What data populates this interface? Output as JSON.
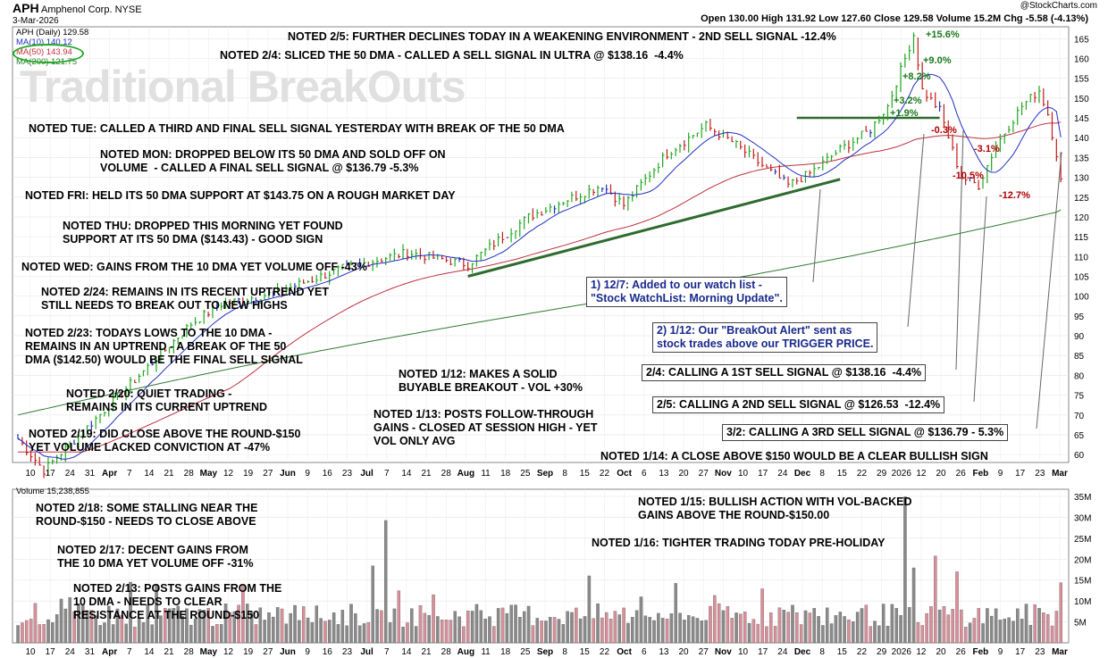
{
  "header": {
    "ticker": "APH",
    "company": "Amphenol Corp.",
    "exchange": "NYSE",
    "date": "3-Mar-2026",
    "source": "@StockCharts.com",
    "ohlc": "Open 130.00  High 131.92  Low 127.60  Close 129.58  Volume 15.2M  Chg -5.58 (-4.13%)"
  },
  "watermark": "Traditional BreakOuts",
  "legend": {
    "main": "APH (Daily) 129.58",
    "ma10": "MA(10) 140.12",
    "ma50": "MA(50) 143.94",
    "ma200": "MA(200) 121.75",
    "volume": "Volume 15,238,855"
  },
  "colors": {
    "up": "#1fa81f",
    "down": "#c21a1a",
    "neutral": "#2030b0",
    "ma10": "#2030c0",
    "ma50": "#c03040",
    "ma200": "#2e7d32",
    "vol_up": "#8a8a8a",
    "vol_down": "#d98f9a",
    "trend": "#2e6b2e"
  },
  "notes": [
    "NOTED 2/5: FURTHER DECLINES TODAY IN A WEAKENING ENVIRONMENT - 2ND SELL SIGNAL -12.4%",
    "NOTED 2/4: SLICED THE 50 DMA - CALLED A SELL SIGNAL IN ULTRA @ $138.16  -4.4%",
    "NOTED TUE: CALLED A THIRD AND FINAL SELL SIGNAL YESTERDAY WITH BREAK OF THE 50 DMA",
    "NOTED MON: DROPPED BELOW ITS 50 DMA AND SOLD OFF ON\nVOLUME  - CALLED A FINAL SELL SIGNAL @ $136.79 -5.3%",
    "NOTED FRI: HELD ITS 50 DMA SUPPORT AT $143.75 ON A ROUGH MARKET DAY",
    "NOTED THU: DROPPED THIS MORNING YET FOUND\nSUPPORT AT ITS 50 DMA ($143.43) - GOOD SIGN",
    "NOTED WED: GAINS FROM THE 10 DMA YET VOLUME OFF -43%",
    "NOTED 2/24: REMAINS IN ITS RECENT UPTREND YET\nSTILL NEEDS TO BREAK OUT TO NEW HIGHS",
    "NOTED 2/23: TODAYS LOWS TO THE 10 DMA -\nREMAINS IN AN UPTREND - A BREAK OF THE 50\nDMA ($142.50) WOULD BE THE FINAL SELL SIGNAL",
    "NOTED 2/20: QUIET TRADING -\nREMAINS IN ITS CURRENT UPTREND",
    "NOTED 2/19: DID CLOSE ABOVE THE ROUND-$150\nYET VOLUME LACKED CONVICTION AT -47%",
    "NOTED 1/12: MAKES A SOLID\nBUYABLE BREAKOUT - VOL +30%",
    "NOTED 1/13: POSTS FOLLOW-THROUGH\nGAINS - CLOSED AT SESSION HIGH - YET\nVOL ONLY AVG",
    "NOTED 1/14: A CLOSE ABOVE $150 WOULD BE A CLEAR BULLISH SIGN",
    "NOTED 2/18: SOME STALLING NEAR THE\nROUND-$150 - NEEDS TO CLOSE ABOVE",
    "NOTED 2/17: DECENT GAINS FROM\nTHE 10 DMA YET VOLUME OFF -31%",
    "NOTED 2/13: POSTS GAINS FROM THE\n10 DMA - NEEDS TO CLEAR\nRESISTANCE AT THE ROUND-$150",
    "NOTED 1/15: BULLISH ACTION WITH VOL-BACKED\nGAINS ABOVE THE ROUND-$150.00",
    "NOTED 1/16: TIGHTER TRADING TODAY PRE-HOLIDAY"
  ],
  "annotations": [
    "1) 12/7: Added to our watch list -\n\"Stock WatchList: Morning Update\".",
    "2) 1/12: Our \"BreakOut Alert\" sent as\nstock trades above our TRIGGER PRICE.",
    "2/4: CALLING A 1ST SELL SIGNAL @ $138.16  -4.4%",
    "2/5: CALLING A 2ND SELL SIGNAL @ $126.53  -12.4%",
    "3/2: CALLING A 3RD SELL SIGNAL @ $136.79 - 5.3%"
  ],
  "pct_labels": [
    "+15.6%",
    "+9.0%",
    "+8.2%",
    "+3.2%",
    "+1.9%",
    "-0.3%",
    "-3.1%",
    "-10.5%",
    "-12.7%"
  ],
  "chart_data": {
    "type": "line",
    "price_axis_ticks": [
      60,
      65,
      70,
      75,
      80,
      85,
      90,
      95,
      100,
      105,
      110,
      115,
      120,
      125,
      130,
      135,
      140,
      145,
      150,
      155,
      160,
      165
    ],
    "volume_axis_ticks": [
      "5M",
      "10M",
      "15M",
      "20M",
      "25M",
      "30M",
      "35M"
    ],
    "x_tick_labels": [
      "10",
      "17",
      "24",
      "31",
      "Apr",
      "7",
      "14",
      "21",
      "28",
      "May",
      "12",
      "19",
      "27",
      "Jun",
      "9",
      "16",
      "23",
      "Jul",
      "7",
      "14",
      "21",
      "28",
      "Aug",
      "11",
      "18",
      "25",
      "Sep",
      "8",
      "15",
      "22",
      "Oct",
      "6",
      "13",
      "20",
      "27",
      "Nov",
      "10",
      "17",
      "24",
      "Dec",
      "8",
      "15",
      "22",
      "29",
      "2026",
      "12",
      "20",
      "26",
      "Feb",
      "9",
      "17",
      "23",
      "Mar"
    ],
    "price_knots": [
      [
        0,
        64
      ],
      [
        6,
        56
      ],
      [
        40,
        93
      ],
      [
        47,
        98
      ],
      [
        60,
        101
      ],
      [
        75,
        107
      ],
      [
        90,
        111
      ],
      [
        104,
        108
      ],
      [
        112,
        115
      ],
      [
        118,
        120
      ],
      [
        126,
        124
      ],
      [
        135,
        128
      ],
      [
        140,
        123
      ],
      [
        150,
        136
      ],
      [
        159,
        143
      ],
      [
        165,
        139
      ],
      [
        172,
        133
      ],
      [
        178,
        128
      ],
      [
        183,
        131
      ],
      [
        190,
        137
      ],
      [
        197,
        142
      ],
      [
        201,
        148
      ],
      [
        205,
        160
      ],
      [
        207,
        166
      ],
      [
        209,
        152
      ],
      [
        213,
        147
      ],
      [
        218,
        130
      ],
      [
        222,
        128
      ],
      [
        226,
        138
      ],
      [
        232,
        148
      ],
      [
        236,
        152
      ],
      [
        238,
        146
      ],
      [
        240,
        136
      ],
      [
        241,
        129.58
      ]
    ],
    "close": 129.58,
    "ma10_last": 140.12,
    "ma50_last": 143.94,
    "ma200_last": 121.75,
    "volume_last": 15238855,
    "resistance_level": 145,
    "ylim": [
      58,
      168
    ]
  }
}
